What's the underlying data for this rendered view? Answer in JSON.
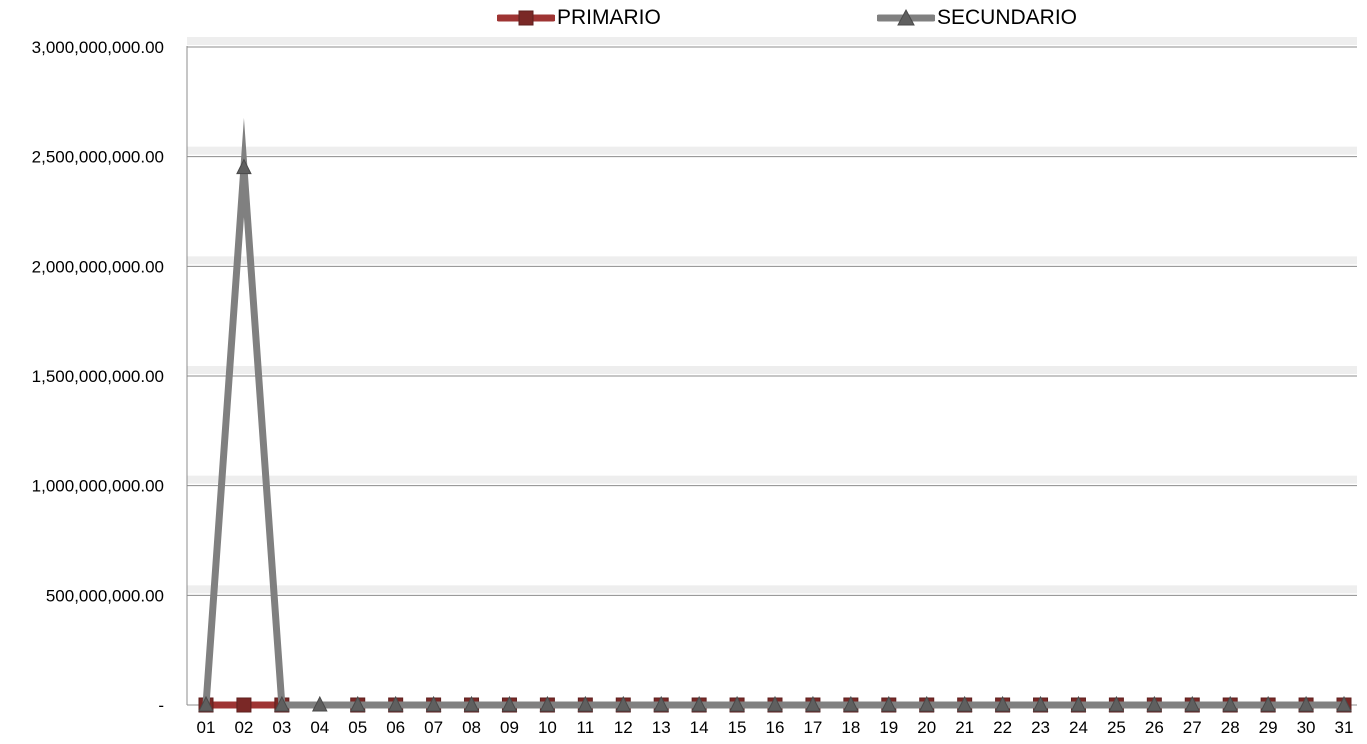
{
  "chart_data": {
    "type": "line",
    "x": [
      "01",
      "02",
      "03",
      "04",
      "05",
      "06",
      "07",
      "08",
      "09",
      "10",
      "11",
      "12",
      "13",
      "14",
      "15",
      "16",
      "17",
      "18",
      "19",
      "20",
      "21",
      "22",
      "23",
      "24",
      "25",
      "26",
      "27",
      "28",
      "29",
      "30",
      "31"
    ],
    "series": [
      {
        "name": "PRIMARIO",
        "color": "#9e3433",
        "marker": "square",
        "values": [
          0,
          0,
          0,
          null,
          0,
          0,
          0,
          0,
          0,
          0,
          0,
          0,
          0,
          0,
          0,
          0,
          0,
          0,
          0,
          0,
          0,
          0,
          0,
          0,
          0,
          0,
          0,
          0,
          0,
          0,
          0
        ]
      },
      {
        "name": "SECUNDARIO",
        "color": "#808080",
        "marker": "triangle",
        "values": [
          0,
          2450000000,
          0,
          0,
          0,
          0,
          0,
          0,
          0,
          0,
          0,
          0,
          0,
          0,
          0,
          0,
          0,
          0,
          0,
          0,
          0,
          0,
          0,
          0,
          0,
          0,
          0,
          0,
          0,
          0,
          0
        ]
      }
    ],
    "y_ticks": [
      {
        "value": 0,
        "label": "-"
      },
      {
        "value": 500000000,
        "label": "500,000,000.00"
      },
      {
        "value": 1000000000,
        "label": "1,000,000,000.00"
      },
      {
        "value": 1500000000,
        "label": "1,500,000,000.00"
      },
      {
        "value": 2000000000,
        "label": "2,000,000,000.00"
      },
      {
        "value": 2500000000,
        "label": "2,500,000,000.00"
      },
      {
        "value": 3000000000,
        "label": "3,000,000,000.00"
      }
    ],
    "ylim": [
      0,
      3000000000
    ],
    "grid": true,
    "legend_position": "top"
  }
}
